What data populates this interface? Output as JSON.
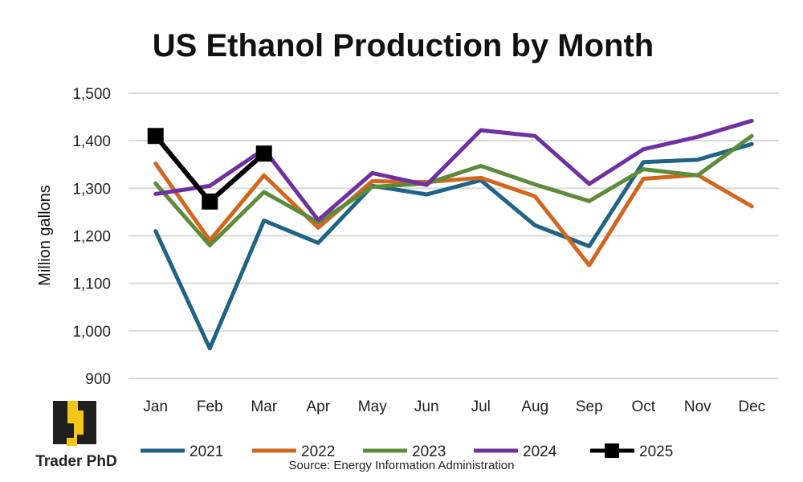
{
  "chart_data": {
    "type": "line",
    "title": "US Ethanol Production by Month",
    "ylabel": "Million gallons",
    "xlabel": "",
    "categories": [
      "Jan",
      "Feb",
      "Mar",
      "Apr",
      "May",
      "Jun",
      "Jul",
      "Aug",
      "Sep",
      "Oct",
      "Nov",
      "Dec"
    ],
    "ylim": [
      900,
      1500
    ],
    "yticks": [
      900,
      1000,
      1100,
      1200,
      1300,
      1400,
      1500
    ],
    "ytick_labels": [
      "900",
      "1,000",
      "1,100",
      "1,200",
      "1,300",
      "1,400",
      "1,500"
    ],
    "grid": "horizontal",
    "legend_position": "bottom",
    "series": [
      {
        "name": "2021",
        "color": "#1f6385",
        "marker": "none",
        "values": [
          1210,
          963,
          1232,
          1185,
          1305,
          1287,
          1317,
          1222,
          1178,
          1355,
          1360,
          1393
        ]
      },
      {
        "name": "2022",
        "color": "#d3661f",
        "marker": "none",
        "values": [
          1352,
          1190,
          1327,
          1217,
          1315,
          1313,
          1322,
          1283,
          1138,
          1320,
          1328,
          1262
        ]
      },
      {
        "name": "2023",
        "color": "#5d8b3a",
        "marker": "none",
        "values": [
          1310,
          1180,
          1292,
          1228,
          1303,
          1310,
          1347,
          1308,
          1273,
          1340,
          1327,
          1410
        ]
      },
      {
        "name": "2024",
        "color": "#7030a0",
        "marker": "none",
        "values": [
          1288,
          1305,
          1382,
          1233,
          1332,
          1307,
          1422,
          1410,
          1309,
          1382,
          1408,
          1442
        ]
      },
      {
        "name": "2025",
        "color": "#000000",
        "marker": "square",
        "values": [
          1410,
          1272,
          1373,
          null,
          null,
          null,
          null,
          null,
          null,
          null,
          null,
          null
        ]
      }
    ],
    "source": "Source: Energy Information Administration"
  },
  "logo": {
    "text": "Trader PhD"
  }
}
